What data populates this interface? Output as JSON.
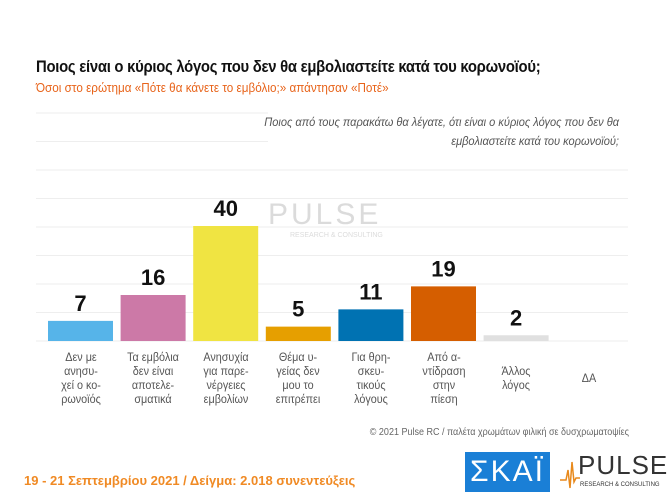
{
  "chart_data": {
    "type": "bar",
    "title": "Ποιος είναι ο κύριος λόγος που δεν θα εμβολιαστείτε κατά του κορωνοϊού;",
    "subtitle": "Όσοι στο ερώτημα «Πότε θα κάνετε το εμβόλιο;» απάντησαν «Ποτέ»",
    "question": "Ποιος από τους παρακάτω θα λέγατε, ότι είναι ο κύριος λόγος που δεν θα εμβολιαστείτε κατά του κορωνοϊού;",
    "categories": [
      "Δεν με ανησυ-χεί ο κο-ρωνοϊός",
      "Τα εμβόλια δεν είναι αποτελε-σματικά",
      "Ανησυχία για παρε-νέργειες εμβολίων",
      "Θέμα υ-γείας δεν μου το επιτρέπει",
      "Για θρη-σκευ-τικούς λόγους",
      "Από α-ντίδραση στην πίεση",
      "Άλλος λόγος",
      "ΔΑ"
    ],
    "category_lines": [
      [
        "Δεν με",
        "ανησυ-",
        "χεί ο κο-",
        "ρωνοϊός"
      ],
      [
        "Τα εμβόλια",
        "δεν είναι",
        "αποτελε-",
        "σματικά"
      ],
      [
        "Ανησυχία",
        "για παρε-",
        "νέργειες",
        "εμβολίων"
      ],
      [
        "Θέμα υ-",
        "γείας δεν",
        "μου το",
        "επιτρέπει"
      ],
      [
        "Για θρη-",
        "σκευ-",
        "τικούς",
        "λόγους"
      ],
      [
        "Από α-",
        "ντίδραση",
        "στην",
        "πίεση"
      ],
      [
        "Άλλος",
        "λόγος"
      ],
      [
        "ΔΑ"
      ]
    ],
    "values": [
      7,
      16,
      40,
      5,
      11,
      19,
      2,
      null
    ],
    "colors": [
      "#56B4E9",
      "#CC79A7",
      "#F0E442",
      "#E69F00",
      "#0072B2",
      "#D55E00",
      "#E0E0E0",
      "#E0E0E0"
    ],
    "ylim": [
      0,
      80
    ],
    "grid": true
  },
  "credit": "© 2021 Pulse RC  /  παλέτα χρωμάτων φιλική σε δυσχρωματοψίες",
  "footer": "19 - 21 Σεπτεμβρίου 2021  /  Δείγμα:  2.018 συνεντεύξεις",
  "logos": {
    "skai": "ΣΚΑΪ",
    "pulse": "PULSE",
    "pulse_sub": "RESEARCH & CONSULTING"
  }
}
